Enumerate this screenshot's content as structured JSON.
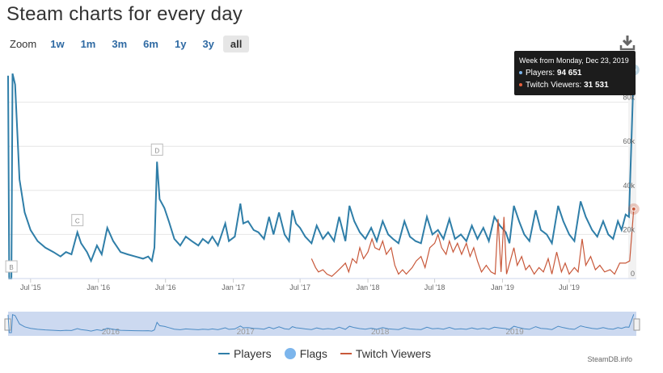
{
  "title": "Steam charts for every day",
  "zoom": {
    "label": "Zoom",
    "buttons": [
      "1w",
      "1m",
      "3m",
      "6m",
      "1y",
      "3y",
      "all"
    ],
    "active": "all"
  },
  "icons": {
    "download": "download-icon"
  },
  "tooltip": {
    "title": "Week from Monday, Dec 23, 2019",
    "players_label": "Players:",
    "players_value": "94 651",
    "twitch_label": "Twitch Viewers:",
    "twitch_value": "31 531"
  },
  "legend": {
    "players": "Players",
    "flags": "Flags",
    "twitch": "Twitch Viewers"
  },
  "credit": "SteamDB.info",
  "colors": {
    "players": "#2f7ea8",
    "twitch": "#c8583a",
    "flags": "#7cb5ec",
    "navigator_fill": "#c6d5ee"
  },
  "chart_data": {
    "type": "line",
    "xlabel": "",
    "ylabel": "",
    "y_range": [
      0,
      100000
    ],
    "y_ticks": [
      0,
      20000,
      40000,
      60000,
      80000
    ],
    "y_tick_labels": [
      "0",
      "20k",
      "40k",
      "60k",
      "80k"
    ],
    "x_ticks": [
      {
        "date": "2015-07-01",
        "label": "Jul '15"
      },
      {
        "date": "2016-01-01",
        "label": "Jan '16"
      },
      {
        "date": "2016-07-01",
        "label": "Jul '16"
      },
      {
        "date": "2017-01-01",
        "label": "Jan '17"
      },
      {
        "date": "2017-07-01",
        "label": "Jul '17"
      },
      {
        "date": "2018-01-01",
        "label": "Jan '18"
      },
      {
        "date": "2018-07-01",
        "label": "Jul '18"
      },
      {
        "date": "2019-01-01",
        "label": "Jan '19"
      },
      {
        "date": "2019-07-01",
        "label": "Jul '19"
      }
    ],
    "navigator_labels": [
      {
        "date": "2016-01-01",
        "label": "2016"
      },
      {
        "date": "2017-01-01",
        "label": "2017"
      },
      {
        "date": "2018-01-01",
        "label": "2018"
      },
      {
        "date": "2019-01-01",
        "label": "2019"
      }
    ],
    "x_range": [
      "2015-05-01",
      "2019-12-30"
    ],
    "flags": [
      {
        "date": "2015-05-10",
        "label": "B"
      },
      {
        "date": "2015-11-05",
        "label": "C"
      },
      {
        "date": "2016-06-08",
        "label": "D"
      }
    ],
    "series": [
      {
        "name": "Players",
        "points": [
          [
            "2015-05-01",
            92000
          ],
          [
            "2015-05-04",
            0
          ],
          [
            "2015-05-10",
            0
          ],
          [
            "2015-05-13",
            93000
          ],
          [
            "2015-05-20",
            88000
          ],
          [
            "2015-06-01",
            45000
          ],
          [
            "2015-06-15",
            30000
          ],
          [
            "2015-07-01",
            22000
          ],
          [
            "2015-07-20",
            17000
          ],
          [
            "2015-08-10",
            14000
          ],
          [
            "2015-09-01",
            12000
          ],
          [
            "2015-09-20",
            10000
          ],
          [
            "2015-10-05",
            12000
          ],
          [
            "2015-10-20",
            11000
          ],
          [
            "2015-11-05",
            21000
          ],
          [
            "2015-11-15",
            16000
          ],
          [
            "2015-12-01",
            12000
          ],
          [
            "2015-12-12",
            8000
          ],
          [
            "2015-12-28",
            15000
          ],
          [
            "2016-01-10",
            11000
          ],
          [
            "2016-01-25",
            23000
          ],
          [
            "2016-02-10",
            17000
          ],
          [
            "2016-03-01",
            12000
          ],
          [
            "2016-03-20",
            11000
          ],
          [
            "2016-04-10",
            10000
          ],
          [
            "2016-05-01",
            9000
          ],
          [
            "2016-05-15",
            10000
          ],
          [
            "2016-05-25",
            8000
          ],
          [
            "2016-06-01",
            14000
          ],
          [
            "2016-06-08",
            53000
          ],
          [
            "2016-06-15",
            36000
          ],
          [
            "2016-06-28",
            32000
          ],
          [
            "2016-07-10",
            26000
          ],
          [
            "2016-07-25",
            18000
          ],
          [
            "2016-08-10",
            15000
          ],
          [
            "2016-08-25",
            19000
          ],
          [
            "2016-09-10",
            17000
          ],
          [
            "2016-09-28",
            15000
          ],
          [
            "2016-10-10",
            18000
          ],
          [
            "2016-10-25",
            16000
          ],
          [
            "2016-11-05",
            19000
          ],
          [
            "2016-11-20",
            15000
          ],
          [
            "2016-12-10",
            25000
          ],
          [
            "2016-12-20",
            17000
          ],
          [
            "2017-01-05",
            19000
          ],
          [
            "2017-01-20",
            34000
          ],
          [
            "2017-01-28",
            25000
          ],
          [
            "2017-02-10",
            26000
          ],
          [
            "2017-02-25",
            22000
          ],
          [
            "2017-03-10",
            21000
          ],
          [
            "2017-03-25",
            18000
          ],
          [
            "2017-04-08",
            28000
          ],
          [
            "2017-04-20",
            20000
          ],
          [
            "2017-05-05",
            30000
          ],
          [
            "2017-05-20",
            20000
          ],
          [
            "2017-06-01",
            17000
          ],
          [
            "2017-06-10",
            31000
          ],
          [
            "2017-06-20",
            25000
          ],
          [
            "2017-07-01",
            23000
          ],
          [
            "2017-07-15",
            19000
          ],
          [
            "2017-08-01",
            16000
          ],
          [
            "2017-08-15",
            24000
          ],
          [
            "2017-09-01",
            18000
          ],
          [
            "2017-09-15",
            21000
          ],
          [
            "2017-10-01",
            17000
          ],
          [
            "2017-10-15",
            28000
          ],
          [
            "2017-11-01",
            17000
          ],
          [
            "2017-11-12",
            33000
          ],
          [
            "2017-11-25",
            26000
          ],
          [
            "2017-12-10",
            21000
          ],
          [
            "2017-12-25",
            18000
          ],
          [
            "2018-01-10",
            23000
          ],
          [
            "2018-01-25",
            17000
          ],
          [
            "2018-02-10",
            26000
          ],
          [
            "2018-02-25",
            20000
          ],
          [
            "2018-03-10",
            18000
          ],
          [
            "2018-03-25",
            16000
          ],
          [
            "2018-04-10",
            26000
          ],
          [
            "2018-04-25",
            19000
          ],
          [
            "2018-05-10",
            17000
          ],
          [
            "2018-05-25",
            16000
          ],
          [
            "2018-06-10",
            28000
          ],
          [
            "2018-06-25",
            20000
          ],
          [
            "2018-07-10",
            22000
          ],
          [
            "2018-07-25",
            18000
          ],
          [
            "2018-08-10",
            27000
          ],
          [
            "2018-08-25",
            18000
          ],
          [
            "2018-09-10",
            20000
          ],
          [
            "2018-09-25",
            17000
          ],
          [
            "2018-10-10",
            24000
          ],
          [
            "2018-10-25",
            18000
          ],
          [
            "2018-11-10",
            23000
          ],
          [
            "2018-11-25",
            17000
          ],
          [
            "2018-12-10",
            28000
          ],
          [
            "2018-12-25",
            24000
          ],
          [
            "2019-01-10",
            21000
          ],
          [
            "2019-01-20",
            16000
          ],
          [
            "2019-02-01",
            33000
          ],
          [
            "2019-02-15",
            26000
          ],
          [
            "2019-03-01",
            20000
          ],
          [
            "2019-03-15",
            17000
          ],
          [
            "2019-04-01",
            31000
          ],
          [
            "2019-04-15",
            22000
          ],
          [
            "2019-05-01",
            20000
          ],
          [
            "2019-05-15",
            16000
          ],
          [
            "2019-06-01",
            33000
          ],
          [
            "2019-06-15",
            26000
          ],
          [
            "2019-07-01",
            20000
          ],
          [
            "2019-07-15",
            17000
          ],
          [
            "2019-08-01",
            35000
          ],
          [
            "2019-08-15",
            28000
          ],
          [
            "2019-09-01",
            22000
          ],
          [
            "2019-09-15",
            19000
          ],
          [
            "2019-10-01",
            26000
          ],
          [
            "2019-10-15",
            20000
          ],
          [
            "2019-10-28",
            18000
          ],
          [
            "2019-11-10",
            26000
          ],
          [
            "2019-11-20",
            22000
          ],
          [
            "2019-12-01",
            29000
          ],
          [
            "2019-12-10",
            28000
          ],
          [
            "2019-12-23",
            94651
          ]
        ]
      },
      {
        "name": "Twitch Viewers",
        "points": [
          [
            "2017-08-01",
            9000
          ],
          [
            "2017-08-12",
            5000
          ],
          [
            "2017-08-20",
            3000
          ],
          [
            "2017-09-01",
            4000
          ],
          [
            "2017-09-12",
            2000
          ],
          [
            "2017-09-25",
            1000
          ],
          [
            "2017-10-08",
            3000
          ],
          [
            "2017-10-20",
            5000
          ],
          [
            "2017-11-01",
            7000
          ],
          [
            "2017-11-10",
            3000
          ],
          [
            "2017-11-20",
            9000
          ],
          [
            "2017-12-01",
            7000
          ],
          [
            "2017-12-10",
            14000
          ],
          [
            "2017-12-20",
            9000
          ],
          [
            "2018-01-01",
            12000
          ],
          [
            "2018-01-12",
            18000
          ],
          [
            "2018-01-20",
            14000
          ],
          [
            "2018-02-01",
            13000
          ],
          [
            "2018-02-10",
            17000
          ],
          [
            "2018-02-20",
            11000
          ],
          [
            "2018-03-05",
            14000
          ],
          [
            "2018-03-15",
            6000
          ],
          [
            "2018-03-25",
            2000
          ],
          [
            "2018-04-05",
            4000
          ],
          [
            "2018-04-15",
            2000
          ],
          [
            "2018-05-01",
            5000
          ],
          [
            "2018-05-12",
            8000
          ],
          [
            "2018-05-25",
            10000
          ],
          [
            "2018-06-05",
            5000
          ],
          [
            "2018-06-18",
            14000
          ],
          [
            "2018-07-01",
            16000
          ],
          [
            "2018-07-10",
            20000
          ],
          [
            "2018-07-20",
            14000
          ],
          [
            "2018-08-01",
            11000
          ],
          [
            "2018-08-10",
            17000
          ],
          [
            "2018-08-20",
            12000
          ],
          [
            "2018-09-01",
            16000
          ],
          [
            "2018-09-12",
            11000
          ],
          [
            "2018-09-25",
            16000
          ],
          [
            "2018-10-05",
            10000
          ],
          [
            "2018-10-15",
            14000
          ],
          [
            "2018-10-25",
            8000
          ],
          [
            "2018-11-05",
            3000
          ],
          [
            "2018-11-18",
            6000
          ],
          [
            "2018-12-01",
            3000
          ],
          [
            "2018-12-12",
            2000
          ],
          [
            "2018-12-20",
            27000
          ],
          [
            "2018-12-28",
            3000
          ],
          [
            "2019-01-05",
            28000
          ],
          [
            "2019-01-12",
            2000
          ],
          [
            "2019-01-22",
            8000
          ],
          [
            "2019-02-01",
            14000
          ],
          [
            "2019-02-10",
            6000
          ],
          [
            "2019-02-22",
            10000
          ],
          [
            "2019-03-05",
            4000
          ],
          [
            "2019-03-15",
            6000
          ],
          [
            "2019-03-28",
            2000
          ],
          [
            "2019-04-10",
            5000
          ],
          [
            "2019-04-22",
            3000
          ],
          [
            "2019-05-05",
            9000
          ],
          [
            "2019-05-15",
            2000
          ],
          [
            "2019-05-28",
            12000
          ],
          [
            "2019-06-10",
            3000
          ],
          [
            "2019-06-20",
            7000
          ],
          [
            "2019-07-01",
            2000
          ],
          [
            "2019-07-15",
            5000
          ],
          [
            "2019-07-25",
            3000
          ],
          [
            "2019-08-05",
            18000
          ],
          [
            "2019-08-15",
            6000
          ],
          [
            "2019-08-28",
            10000
          ],
          [
            "2019-09-10",
            4000
          ],
          [
            "2019-09-22",
            6000
          ],
          [
            "2019-10-05",
            3000
          ],
          [
            "2019-10-20",
            4000
          ],
          [
            "2019-11-01",
            2000
          ],
          [
            "2019-11-15",
            7000
          ],
          [
            "2019-12-01",
            7000
          ],
          [
            "2019-12-12",
            8000
          ],
          [
            "2019-12-23",
            31531
          ]
        ]
      }
    ]
  }
}
